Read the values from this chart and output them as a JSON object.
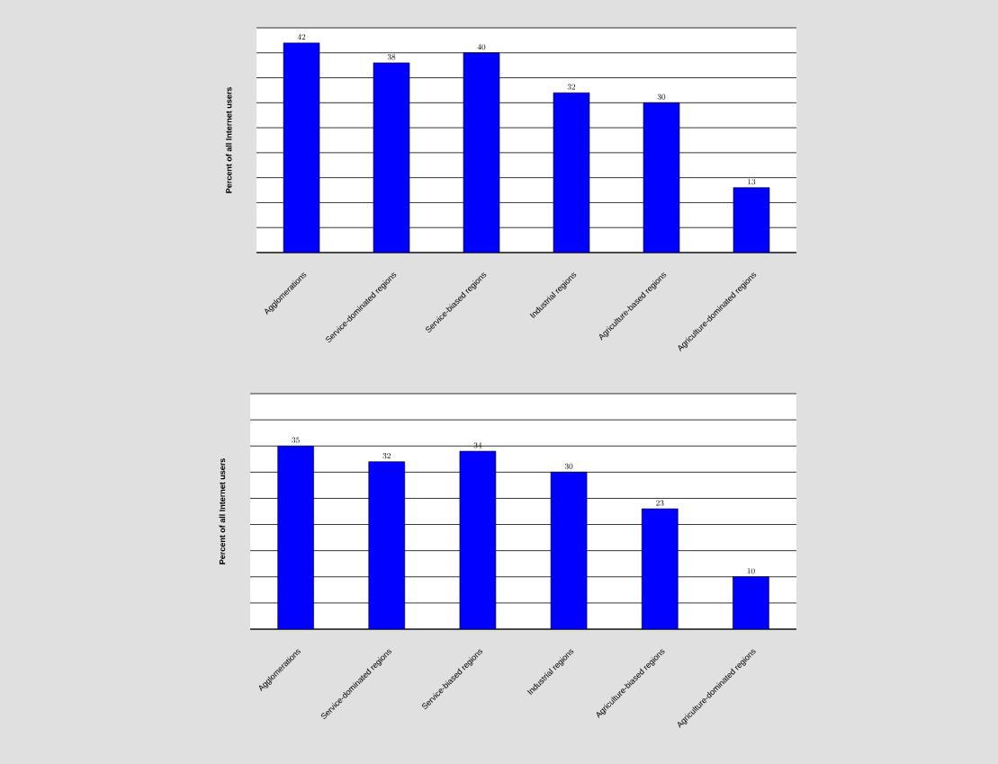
{
  "chart_data": [
    {
      "type": "bar",
      "ylabel": "Percent of all Internet users",
      "categories": [
        "Agglomerations",
        "Service-dominated regions",
        "Service-biased regions",
        "Industrial regions",
        "Agriculture-based regions",
        "Agriculture-dominated regions"
      ],
      "values": [
        42,
        38,
        40,
        32,
        30,
        13
      ],
      "color": "#0000ff",
      "ylim": [
        0,
        45
      ],
      "yticks": [
        {
          "value": 0,
          "label": null
        },
        {
          "value": 5,
          "label": null
        },
        {
          "value": 10,
          "label": null
        },
        {
          "value": 15,
          "label": null
        },
        {
          "value": 20,
          "label": null
        },
        {
          "value": 25,
          "label": null
        },
        {
          "value": 30,
          "label": null
        },
        {
          "value": 35,
          "label": null
        },
        {
          "value": 40,
          "label": null
        },
        {
          "value": 45,
          "label": null
        }
      ],
      "grid": "y",
      "data_labels": true,
      "tick_labels": "x"
    },
    {
      "type": "bar",
      "ylabel": "Percent of all Internet users",
      "categories": [
        "Agglomerations",
        "Service-dominated regions",
        "Service-biased regions",
        "Industrial regions",
        "Agriculture-biased regions",
        "Agriculture-dominated regions"
      ],
      "values": [
        35,
        32,
        34,
        30,
        23,
        10
      ],
      "color": "#0000ff",
      "ylim": [
        0,
        45
      ],
      "yticks": [
        {
          "value": 0,
          "label": null
        },
        {
          "value": 5,
          "label": null
        },
        {
          "value": 10,
          "label": null
        },
        {
          "value": 15,
          "label": null
        },
        {
          "value": 20,
          "label": null
        },
        {
          "value": 25,
          "label": null
        },
        {
          "value": 30,
          "label": null
        },
        {
          "value": 35,
          "label": null
        },
        {
          "value": 40,
          "label": null
        },
        {
          "value": 45,
          "label": null
        }
      ],
      "grid": "y",
      "data_labels": true,
      "tick_labels": "x"
    }
  ]
}
